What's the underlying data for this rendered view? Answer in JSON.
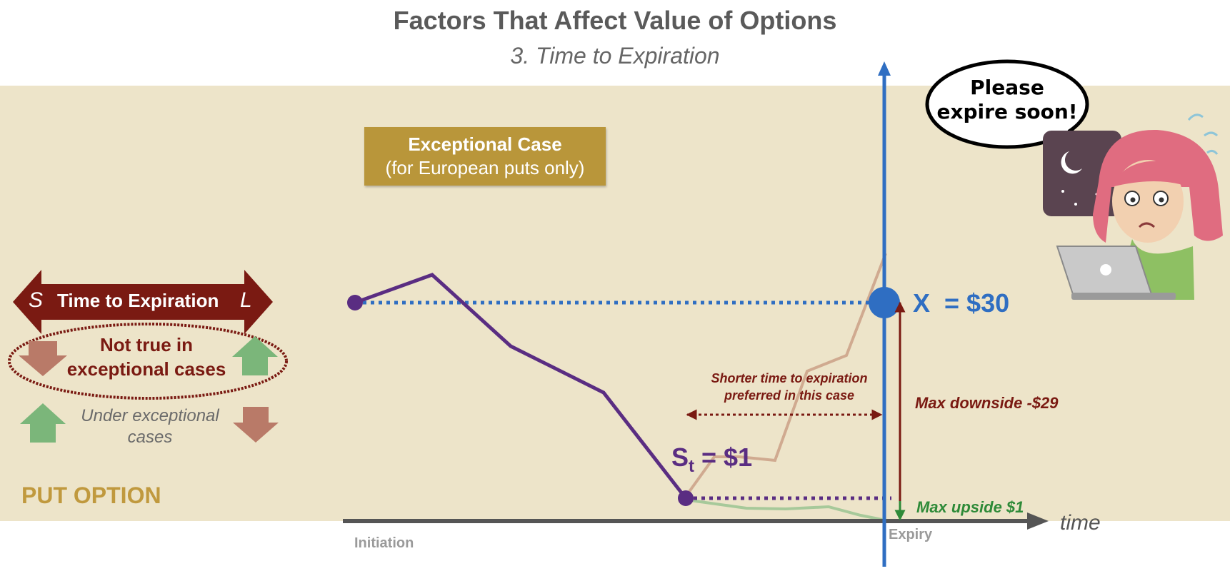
{
  "header": {
    "title": "Factors That Affect Value of Options",
    "subtitle": "3. Time to Expiration"
  },
  "exceptional_box": {
    "title": "Exceptional Case",
    "subtitle": "(for European puts only)"
  },
  "legend": {
    "arrow_short": "S",
    "arrow_label": "Time to Expiration",
    "arrow_long": "L",
    "not_true": "Not true in exceptional cases",
    "under_exceptional": "Under exceptional cases",
    "option_type": "PUT OPTION"
  },
  "annotations": {
    "shorter_time": "Shorter time to expiration preferred in this case",
    "strike": "X",
    "strike_value": "= $30",
    "max_downside": "Max downside -$29",
    "st_main": "S",
    "st_sub": "t",
    "st_value": "= $1",
    "max_upside": "Max upside $1",
    "time_axis": "time",
    "initiation": "Initiation",
    "expiry": "Expiry"
  },
  "speech_bubble": {
    "text": "Please expire soon!"
  },
  "colors": {
    "background_band": "#ede4c9",
    "price_path": "#5a2d82",
    "strike_line": "#2f6ec2",
    "downside": "#7a1a12",
    "upside": "#2e8a38",
    "accent_box": "#b9963a",
    "arrow_red": "#7a1a12",
    "down_arrow": "#b97a68",
    "up_arrow": "#7bb67a"
  },
  "icons": {
    "down_arrow": "down-arrow-icon",
    "up_arrow": "up-arrow-icon",
    "character": "worried-girl-laptop-illustration"
  }
}
